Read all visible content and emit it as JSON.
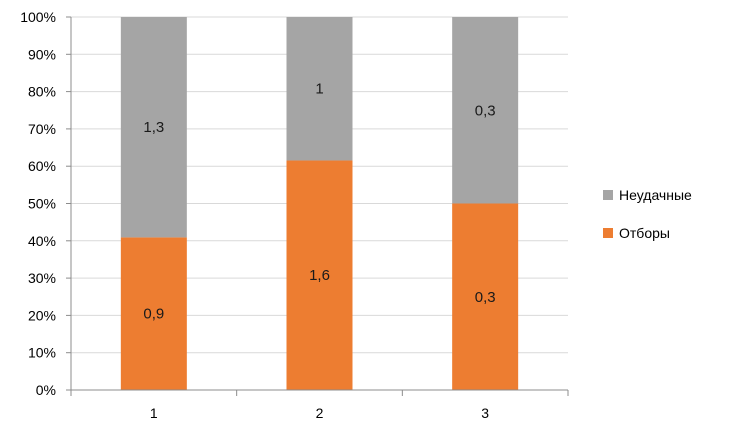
{
  "chart_data": {
    "type": "bar",
    "stacked": true,
    "normalized": "percent",
    "categories": [
      "1",
      "2",
      "3"
    ],
    "series": [
      {
        "name": "Отборы",
        "values": [
          0.9,
          1.6,
          0.3
        ],
        "labels": [
          "0,9",
          "1,6",
          "0,3"
        ],
        "color": "#ED7D31"
      },
      {
        "name": "Неудачные",
        "values": [
          1.3,
          1.0,
          0.3
        ],
        "labels": [
          "1,3",
          "1",
          "0,3"
        ],
        "color": "#A5A5A5"
      }
    ],
    "yticks": [
      "0%",
      "10%",
      "20%",
      "30%",
      "40%",
      "50%",
      "60%",
      "70%",
      "80%",
      "90%",
      "100%"
    ],
    "ylim": [
      0,
      100
    ],
    "grid": true,
    "legend": "right",
    "title": "",
    "xlabel": "",
    "ylabel": ""
  }
}
